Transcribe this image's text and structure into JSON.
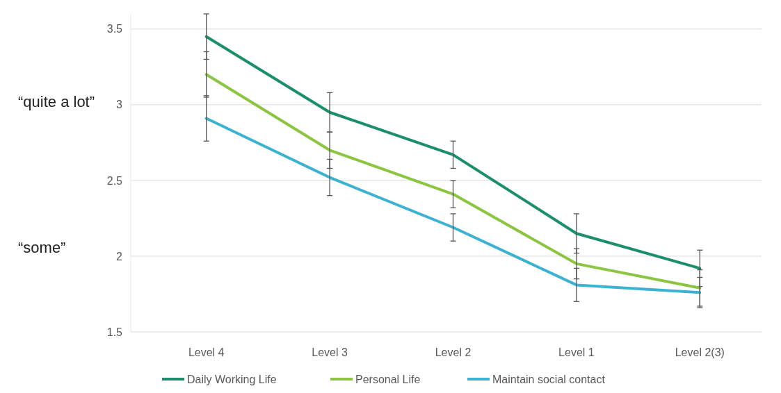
{
  "chart_data": {
    "type": "line",
    "categories": [
      "Level 4",
      "Level 3",
      "Level 2",
      "Level 1",
      "Level 2(3)"
    ],
    "series": [
      {
        "name": "Daily Working Life",
        "color": "#1b8f6b",
        "values": [
          3.45,
          2.95,
          2.67,
          2.15,
          1.92
        ],
        "errors": [
          0.15,
          0.13,
          0.09,
          0.13,
          0.12
        ]
      },
      {
        "name": "Personal Life",
        "color": "#8cc540",
        "values": [
          3.2,
          2.7,
          2.41,
          1.95,
          1.79
        ],
        "errors": [
          0.15,
          0.12,
          0.09,
          0.1,
          0.12
        ]
      },
      {
        "name": "Maintain social contact",
        "color": "#3cb2d2",
        "values": [
          2.91,
          2.52,
          2.19,
          1.81,
          1.76
        ],
        "errors": [
          0.15,
          0.12,
          0.09,
          0.11,
          0.1
        ]
      }
    ],
    "ylim": [
      1.5,
      3.6
    ],
    "yticks": [
      1.5,
      2,
      2.5,
      3,
      3.5
    ],
    "grid": "y",
    "legend": "bottom",
    "marker": "none",
    "line_style": "solid",
    "annotations": [
      "“quite a lot”",
      "“some”"
    ]
  }
}
